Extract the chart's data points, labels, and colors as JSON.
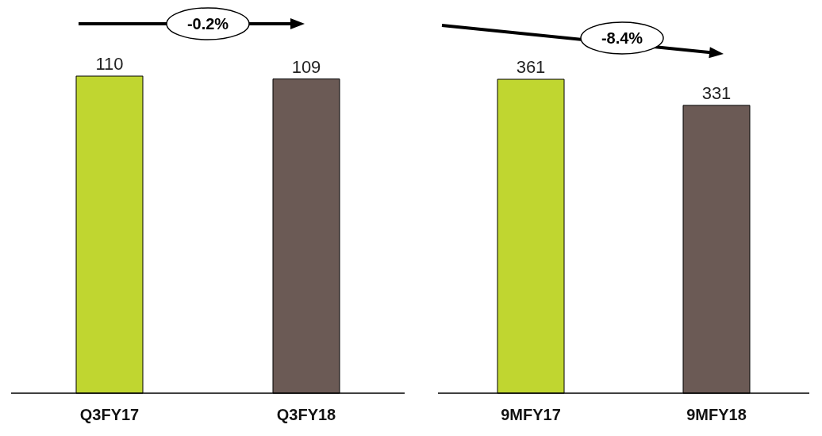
{
  "chart_data": [
    {
      "type": "bar",
      "categories": [
        "Q3FY17",
        "Q3FY18"
      ],
      "values": [
        110,
        109
      ],
      "colors": [
        "#c0d630",
        "#6b5a55"
      ],
      "data_labels": true,
      "annotations": [
        "-0.2%"
      ]
    },
    {
      "type": "bar",
      "categories": [
        "9MFY17",
        "9MFY18"
      ],
      "values": [
        361,
        331
      ],
      "colors": [
        "#c0d630",
        "#6b5a55"
      ],
      "data_labels": true,
      "annotations": [
        "-8.4%"
      ]
    }
  ]
}
